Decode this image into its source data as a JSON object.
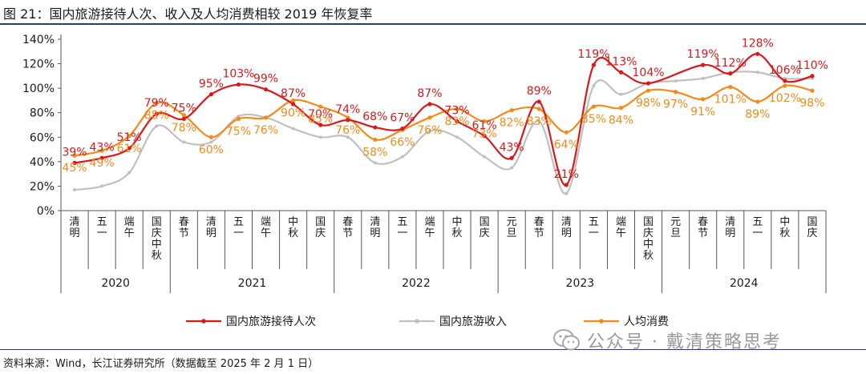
{
  "title": "图 21：国内旅游接待人次、收入及人均消费相较 2019 年恢复率",
  "source": "资料来源：Wind，长江证券研究所（数据截至 2025 年 2 月 1 日）",
  "watermark": "公众号 · 戴清策略思考",
  "watermark_icon": "wechat-icon",
  "colors": {
    "series1": "#d7191c",
    "series2": "#c0c0c0",
    "series3": "#f28a1c",
    "rule": "#2a3f6f"
  },
  "chart_data": {
    "type": "line",
    "title": "",
    "ylim": [
      0,
      140
    ],
    "yticks": [
      "0%",
      "20%",
      "40%",
      "60%",
      "80%",
      "100%",
      "120%",
      "140%"
    ],
    "categories": [
      "清明",
      "五一",
      "端午",
      "国庆中秋",
      "春节",
      "清明",
      "五一",
      "端午",
      "中秋",
      "国庆",
      "春节",
      "清明",
      "五一",
      "端午",
      "中秋",
      "国庆",
      "元旦",
      "春节",
      "清明",
      "五一",
      "端午",
      "国庆中秋",
      "元旦",
      "春节",
      "清明",
      "五一",
      "中秋",
      "国庆"
    ],
    "years": [
      {
        "label": "2020",
        "start": 0,
        "end": 3
      },
      {
        "label": "2021",
        "start": 4,
        "end": 9
      },
      {
        "label": "2022",
        "start": 10,
        "end": 15
      },
      {
        "label": "2023",
        "start": 16,
        "end": 21
      },
      {
        "label": "2024",
        "start": 22,
        "end": 27
      }
    ],
    "series": [
      {
        "name": "国内旅游接待人次",
        "values": [
          39,
          43,
          51,
          79,
          75,
          95,
          103,
          99,
          87,
          70,
          74,
          68,
          67,
          87,
          73,
          61,
          43,
          89,
          21,
          119,
          113,
          104,
          null,
          119,
          112,
          128,
          106,
          110
        ]
      },
      {
        "name": "国内旅游收入",
        "values": [
          17,
          20,
          31,
          69,
          56,
          56,
          77,
          76,
          67,
          60,
          60,
          39,
          44,
          65,
          60,
          44,
          35,
          73,
          14,
          102,
          95,
          104,
          106,
          108,
          113,
          113,
          108,
          108
        ]
      },
      {
        "name": "人均消费",
        "values": [
          45,
          49,
          61,
          88,
          78,
          60,
          75,
          76,
          90,
          85,
          76,
          58,
          66,
          76,
          83,
          73,
          82,
          83,
          64,
          85,
          84,
          98,
          97,
          91,
          101,
          89,
          102,
          98
        ]
      }
    ],
    "labels": {
      "series1": [
        "39%",
        "43%",
        "51%",
        "79%",
        "75%",
        "95%",
        "103%",
        "99%",
        "87%",
        "70%",
        "74%",
        "68%",
        "67%",
        "87%",
        "73%",
        "61%",
        "43%",
        "89%",
        "21%",
        "119%",
        "113%",
        "104%",
        "",
        "119%",
        "112%",
        "128%",
        "106%",
        "110%"
      ],
      "series3": [
        "45%",
        "49%",
        "61%",
        "88%",
        "78%",
        "60%",
        "75%",
        "76%",
        "90%",
        "85%",
        "76%",
        "58%",
        "66%",
        "76%",
        "83%",
        "73%",
        "82%",
        "83%",
        "64%",
        "85%",
        "84%",
        "98%",
        "97%",
        "91%",
        "101%",
        "89%",
        "102%",
        "98%"
      ]
    },
    "legend": {
      "position": "bottom",
      "entries": [
        "国内旅游接待人次",
        "国内旅游收入",
        "人均消费"
      ]
    }
  }
}
